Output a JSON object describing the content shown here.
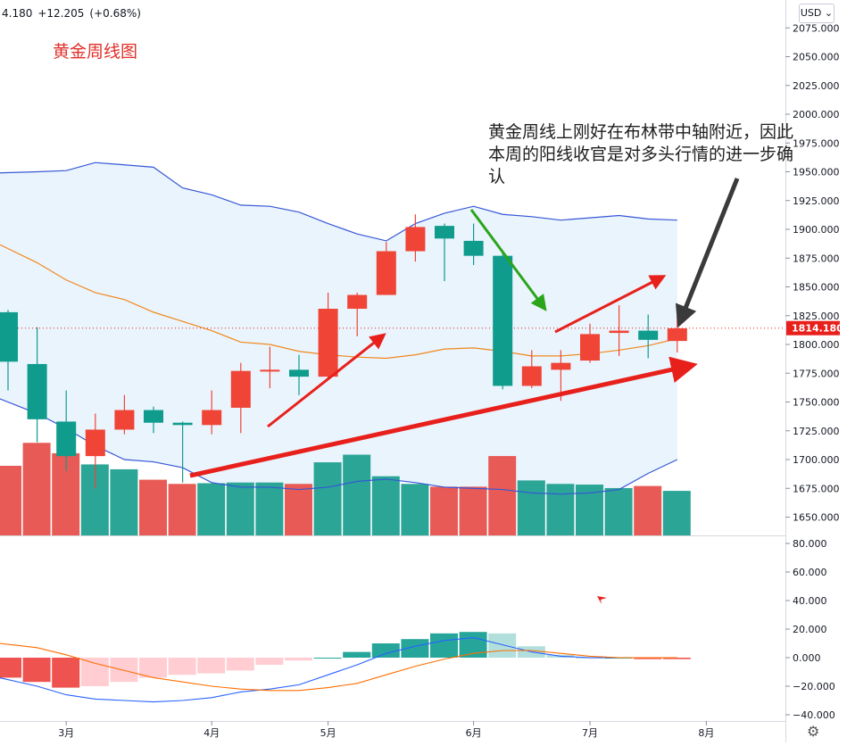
{
  "header": {
    "price_fragment": "4.180",
    "change": "+12.205",
    "change_pct": "(+0.68%)"
  },
  "title": "黄金周线图",
  "annotation": "黄金周线上刚好在布林带中轴附近，因此本周的阳线收官是对多头行情的进一步确认",
  "currency_button": "USD",
  "price_axis": {
    "ticks": [
      "2075.000",
      "2050.000",
      "2025.000",
      "2000.000",
      "1975.000",
      "1950.000",
      "1925.000",
      "1900.000",
      "1875.000",
      "1850.000",
      "1825.000",
      "1800.000",
      "1775.000",
      "1750.000",
      "1725.000",
      "1700.000",
      "1675.000",
      "1650.000"
    ],
    "last_price": "1814.180",
    "last_price_value": 1814.18
  },
  "macd_axis": {
    "ticks": [
      "80.000",
      "60.000",
      "40.000",
      "20.000",
      "0.000",
      "−20.000",
      "−40.000"
    ]
  },
  "time_axis": {
    "labels": [
      "3月",
      "4月",
      "5月",
      "6月",
      "7月",
      "8月"
    ]
  },
  "colors": {
    "up": "#ef4436",
    "down": "#0f9c8c",
    "band": "#3657d6",
    "mid": "#f0881c",
    "bandfill": "#eaf4fd",
    "arrow_red": "#e8201c",
    "arrow_green": "#2aa51a",
    "arrow_gray": "#3a3a3a"
  },
  "chart_data": {
    "type": "candlestick",
    "interval": "weekly",
    "candles": [
      {
        "o": 1828,
        "h": 1830,
        "l": 1760,
        "c": 1785
      },
      {
        "o": 1783,
        "h": 1815,
        "l": 1715,
        "c": 1735
      },
      {
        "o": 1733,
        "h": 1760,
        "l": 1690,
        "c": 1703
      },
      {
        "o": 1703,
        "h": 1740,
        "l": 1675,
        "c": 1726
      },
      {
        "o": 1726,
        "h": 1756,
        "l": 1722,
        "c": 1743
      },
      {
        "o": 1743,
        "h": 1746,
        "l": 1723,
        "c": 1732
      },
      {
        "o": 1732,
        "h": 1733,
        "l": 1680,
        "c": 1730
      },
      {
        "o": 1730,
        "h": 1760,
        "l": 1722,
        "c": 1743
      },
      {
        "o": 1745,
        "h": 1784,
        "l": 1723,
        "c": 1777
      },
      {
        "o": 1777,
        "h": 1798,
        "l": 1762,
        "c": 1778
      },
      {
        "o": 1778,
        "h": 1791,
        "l": 1756,
        "c": 1772
      },
      {
        "o": 1772,
        "h": 1845,
        "l": 1769,
        "c": 1831
      },
      {
        "o": 1831,
        "h": 1845,
        "l": 1807,
        "c": 1843
      },
      {
        "o": 1843,
        "h": 1889,
        "l": 1843,
        "c": 1881
      },
      {
        "o": 1881,
        "h": 1913,
        "l": 1872,
        "c": 1902
      },
      {
        "o": 1903,
        "h": 1905,
        "l": 1855,
        "c": 1892
      },
      {
        "o": 1890,
        "h": 1905,
        "l": 1869,
        "c": 1877
      },
      {
        "o": 1877,
        "h": 1880,
        "l": 1761,
        "c": 1764
      },
      {
        "o": 1764,
        "h": 1795,
        "l": 1762,
        "c": 1781
      },
      {
        "o": 1778,
        "h": 1795,
        "l": 1751,
        "c": 1784
      },
      {
        "o": 1786,
        "h": 1818,
        "l": 1784,
        "c": 1809
      },
      {
        "o": 1810,
        "h": 1834,
        "l": 1790,
        "c": 1812
      },
      {
        "o": 1812,
        "h": 1826,
        "l": 1788,
        "c": 1804
      },
      {
        "o": 1803,
        "h": 1834,
        "l": 1793,
        "c": 1814
      }
    ],
    "volume": [
      {
        "v": 1.0,
        "dir": "up"
      },
      {
        "v": 1.33,
        "dir": "up"
      },
      {
        "v": 1.18,
        "dir": "up"
      },
      {
        "v": 1.02,
        "dir": "down"
      },
      {
        "v": 0.95,
        "dir": "down"
      },
      {
        "v": 0.8,
        "dir": "up"
      },
      {
        "v": 0.74,
        "dir": "up"
      },
      {
        "v": 0.75,
        "dir": "down"
      },
      {
        "v": 0.76,
        "dir": "down"
      },
      {
        "v": 0.76,
        "dir": "down"
      },
      {
        "v": 0.74,
        "dir": "up"
      },
      {
        "v": 1.05,
        "dir": "down"
      },
      {
        "v": 1.16,
        "dir": "down"
      },
      {
        "v": 0.85,
        "dir": "down"
      },
      {
        "v": 0.74,
        "dir": "down"
      },
      {
        "v": 0.7,
        "dir": "up"
      },
      {
        "v": 0.7,
        "dir": "up"
      },
      {
        "v": 1.14,
        "dir": "up"
      },
      {
        "v": 0.79,
        "dir": "down"
      },
      {
        "v": 0.74,
        "dir": "down"
      },
      {
        "v": 0.73,
        "dir": "down"
      },
      {
        "v": 0.68,
        "dir": "down"
      },
      {
        "v": 0.71,
        "dir": "up"
      },
      {
        "v": 0.64,
        "dir": "down"
      }
    ],
    "bb_upper": [
      1949,
      1950,
      1951,
      1958,
      1956,
      1954,
      1936,
      1930,
      1921,
      1920,
      1915,
      1905,
      1896,
      1890,
      1905,
      1914,
      1920,
      1913,
      1911,
      1908,
      1910,
      1912,
      1909,
      1908
    ],
    "bb_middle": [
      1887,
      1871,
      1856,
      1845,
      1839,
      1828,
      1820,
      1812,
      1802,
      1800,
      1794,
      1791,
      1789,
      1788,
      1791,
      1796,
      1797,
      1794,
      1790,
      1790,
      1792,
      1795,
      1799,
      1805
    ],
    "bb_lower": [
      1753,
      1740,
      1727,
      1712,
      1700,
      1698,
      1693,
      1680,
      1676,
      1676,
      1674,
      1676,
      1681,
      1683,
      1680,
      1676,
      1675,
      1674,
      1671,
      1670,
      1671,
      1674,
      1688,
      1700
    ],
    "macd_hist": [
      -14,
      -17,
      -21,
      -20,
      -17,
      -14,
      -12,
      -11,
      -9,
      -5,
      -2,
      0,
      4,
      10,
      13,
      17,
      18,
      17,
      8,
      2,
      0,
      0,
      -1,
      -1
    ],
    "macd_line": [
      -14,
      -20,
      -26,
      -29,
      -30,
      -31,
      -30,
      -28,
      -24,
      -22,
      -19,
      -12,
      -5,
      3,
      8,
      12,
      14,
      9,
      4,
      1,
      0,
      0,
      0,
      0
    ],
    "signal_line": [
      10,
      7,
      2,
      -4,
      -9,
      -14,
      -17,
      -20,
      -22,
      -23,
      -23,
      -21,
      -18,
      -12,
      -6,
      -1,
      3,
      5,
      5,
      3,
      1,
      0,
      0,
      0
    ],
    "ylim_price": [
      1640,
      2080
    ],
    "ylim_macd": [
      -40,
      80
    ]
  }
}
